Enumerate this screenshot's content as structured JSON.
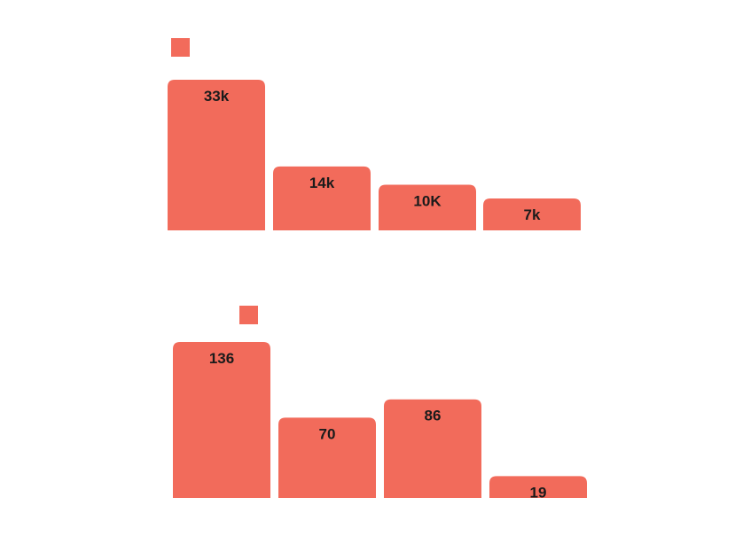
{
  "colors": {
    "bar": "#f26b5b",
    "label": "#1b1b1b",
    "background": "#ffffff"
  },
  "chart_data": [
    {
      "type": "bar",
      "categories": [
        "",
        "",
        "",
        ""
      ],
      "values": [
        33000,
        14000,
        10000,
        7000
      ],
      "data_labels": [
        "33k",
        "14k",
        "10K",
        "7k"
      ],
      "legend": {
        "placement": "top-left",
        "swatch_color": "#f26b5b"
      },
      "title": "",
      "xlabel": "",
      "ylabel": "",
      "ylim": [
        0,
        33000
      ],
      "grid": false
    },
    {
      "type": "bar",
      "categories": [
        "",
        "",
        "",
        ""
      ],
      "values": [
        136,
        70,
        86,
        19
      ],
      "data_labels": [
        "136",
        "70",
        "86",
        "19"
      ],
      "legend": {
        "placement": "top-center",
        "swatch_color": "#f26b5b"
      },
      "title": "",
      "xlabel": "",
      "ylabel": "",
      "ylim": [
        0,
        136
      ],
      "grid": false
    }
  ]
}
